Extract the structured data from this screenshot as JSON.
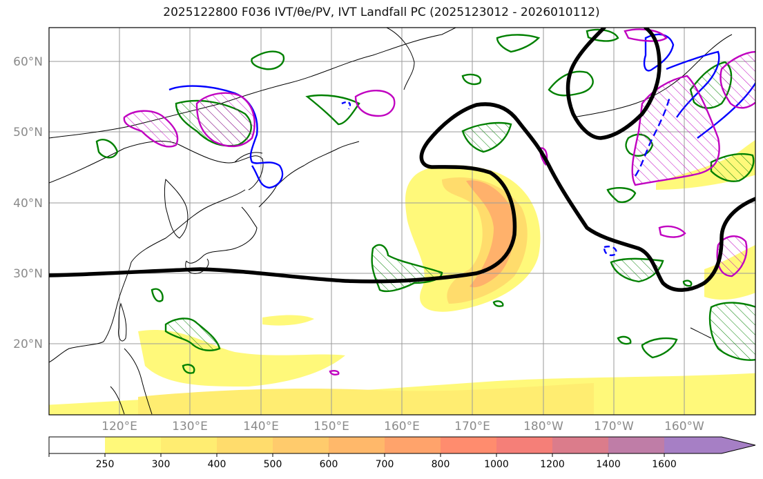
{
  "title": "2025122800 F036 IVT/θe/PV, IVT Landfall PC (2025123012 - 2026010112)",
  "lat_labels": [
    "60°N",
    "50°N",
    "40°N",
    "30°N",
    "20°N"
  ],
  "lon_labels": [
    "120°E",
    "130°E",
    "140°E",
    "150°E",
    "160°E",
    "170°E",
    "180°W",
    "170°W",
    "160°W"
  ],
  "colorbar": {
    "labels": [
      "250",
      "300",
      "400",
      "500",
      "600",
      "700",
      "800",
      "1000",
      "1200",
      "1400",
      "1600"
    ],
    "colors": [
      "#fff97a",
      "#ffed71",
      "#ffdc6c",
      "#ffcb6c",
      "#ffb86a",
      "#ffa36b",
      "#ff8c6e",
      "#f57f78",
      "#db7c8b",
      "#bf7da7",
      "#a67fc5"
    ]
  },
  "contour_colors": {
    "theta_e": "#000000",
    "pv_positive": "#008000",
    "pv_negative": "#0000ff",
    "landfall_pc": "#c000c0"
  }
}
